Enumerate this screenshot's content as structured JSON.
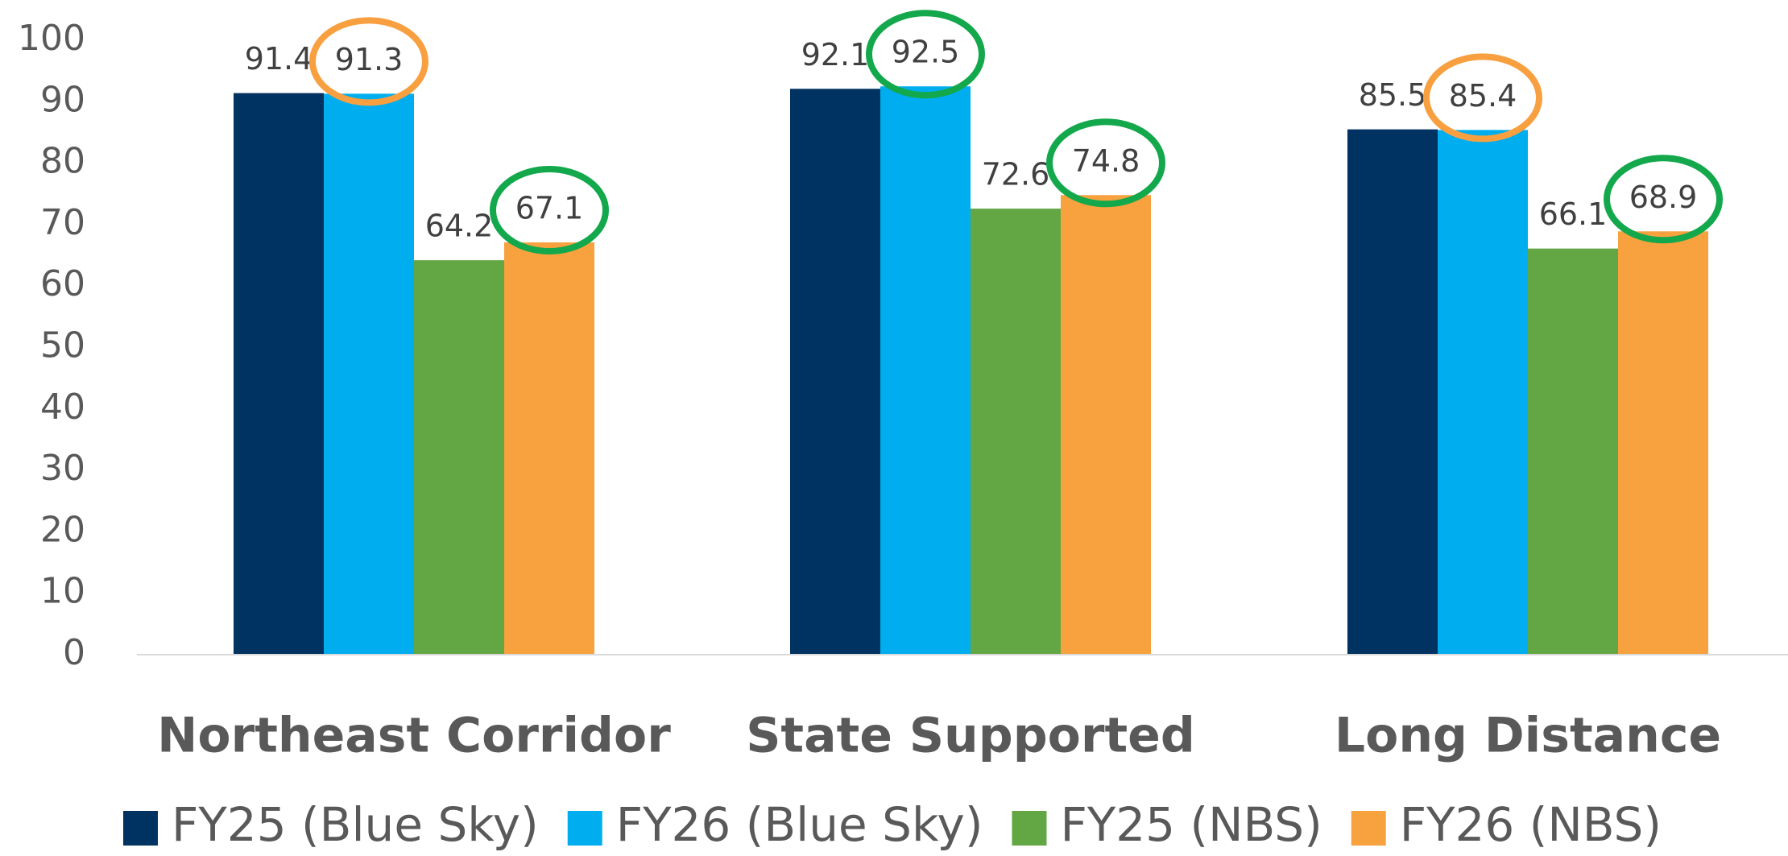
{
  "chart_data": {
    "type": "bar",
    "categories": [
      "Northeast Corridor",
      "State Supported",
      "Long Distance"
    ],
    "series": [
      {
        "name": "FY25 (Blue Sky)",
        "color": "#003361",
        "values": [
          91.4,
          92.1,
          85.5
        ]
      },
      {
        "name": "FY26 (Blue Sky)",
        "color": "#00aeef",
        "values": [
          91.3,
          92.5,
          85.4
        ],
        "label_circle_colors": [
          "#f8a040",
          "#12a84b",
          "#f8a040"
        ]
      },
      {
        "name": "FY25 (NBS)",
        "color": "#63a744",
        "values": [
          64.2,
          72.6,
          66.1
        ]
      },
      {
        "name": "FY26 (NBS)",
        "color": "#f7a13f",
        "values": [
          67.1,
          74.8,
          68.9
        ],
        "label_circle_colors": [
          "#12a84b",
          "#12a84b",
          "#12a84b"
        ]
      }
    ],
    "ylim": [
      0,
      100
    ],
    "yticks": [
      0,
      10,
      20,
      30,
      40,
      50,
      60,
      70,
      80,
      90,
      100
    ],
    "grid": false,
    "legend": "bottom"
  }
}
